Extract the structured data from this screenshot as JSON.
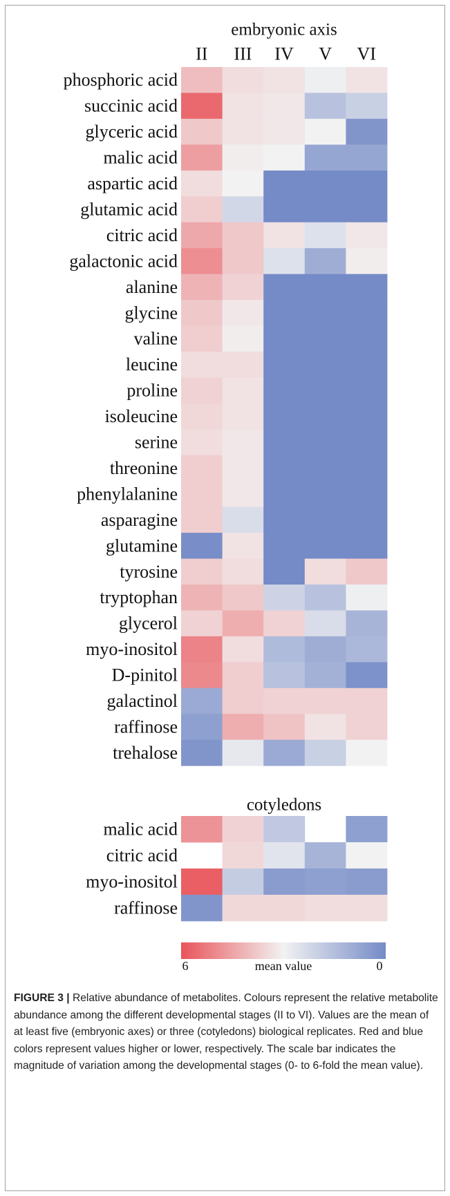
{
  "colorscale": {
    "low": "#758bc7",
    "mid": "#f2f2f2",
    "high": "#e8545a",
    "lim": [
      0,
      6
    ]
  },
  "chart_data": [
    {
      "type": "heatmap",
      "title": "embryonic axis",
      "columns": [
        "II",
        "III",
        "IV",
        "V",
        "VI"
      ],
      "rows": [
        "phosphoric acid",
        "succinic acid",
        "glyceric acid",
        "malic acid",
        "aspartic acid",
        "glutamic acid",
        "citric acid",
        "galactonic acid",
        "alanine",
        "glycine",
        "valine",
        "leucine",
        "proline",
        "isoleucine",
        "serine",
        "threonine",
        "phenylalanine",
        "asparagine",
        "glutamine",
        "tyrosine",
        "tryptophan",
        "glycerol",
        "myo-inositol",
        "D-pinitol",
        "galactinol",
        "raffinose",
        "trehalose"
      ],
      "values": [
        [
          4.0,
          3.4,
          3.3,
          2.9,
          3.3
        ],
        [
          5.6,
          3.3,
          3.2,
          1.6,
          2.0
        ],
        [
          3.8,
          3.3,
          3.2,
          3.0,
          0.3
        ],
        [
          4.6,
          3.1,
          3.0,
          0.8,
          0.8
        ],
        [
          3.4,
          3.0,
          0,
          0,
          0
        ],
        [
          3.7,
          2.2,
          0,
          0,
          0
        ],
        [
          4.4,
          3.8,
          3.3,
          2.5,
          3.2
        ],
        [
          4.9,
          3.8,
          2.5,
          1.0,
          3.1
        ],
        [
          4.2,
          3.6,
          0,
          0,
          0
        ],
        [
          3.8,
          3.2,
          0,
          0,
          0
        ],
        [
          3.7,
          3.1,
          0,
          0,
          0
        ],
        [
          3.4,
          3.4,
          0,
          0,
          0
        ],
        [
          3.6,
          3.3,
          0,
          0,
          0
        ],
        [
          3.5,
          3.3,
          0,
          0,
          0
        ],
        [
          3.4,
          3.2,
          0,
          0,
          0
        ],
        [
          3.7,
          3.2,
          0,
          0,
          0
        ],
        [
          3.7,
          3.2,
          0,
          0,
          0
        ],
        [
          3.7,
          2.4,
          0,
          0,
          0
        ],
        [
          0.1,
          3.3,
          0,
          0,
          0
        ],
        [
          3.7,
          3.4,
          0,
          3.4,
          3.8
        ],
        [
          4.2,
          3.8,
          2.1,
          1.6,
          2.9
        ],
        [
          3.6,
          4.3,
          3.6,
          2.4,
          1.2
        ],
        [
          5.1,
          3.4,
          1.4,
          1.0,
          1.3
        ],
        [
          5.0,
          3.7,
          1.6,
          1.1,
          0.2
        ],
        [
          0.9,
          3.7,
          3.6,
          3.6,
          3.6
        ],
        [
          0.6,
          4.3,
          3.9,
          3.3,
          3.6
        ],
        [
          0.3,
          2.7,
          0.9,
          2.0,
          3.0
        ]
      ]
    },
    {
      "type": "heatmap",
      "title": "cotyledons",
      "rows": [
        "malic acid",
        "citric acid",
        "myo-inositol",
        "raffinose"
      ],
      "values": [
        [
          4.8,
          3.6,
          1.8,
          null,
          0.6
        ],
        [
          null,
          3.5,
          2.6,
          1.2,
          3.0
        ],
        [
          5.8,
          1.9,
          0.5,
          0.6,
          0.5
        ],
        [
          0.3,
          3.5,
          3.5,
          3.4,
          3.4
        ]
      ]
    }
  ],
  "colorbar": {
    "label": "mean value",
    "lim": [
      6,
      0
    ],
    "ticks": [
      6,
      0
    ]
  },
  "caption": {
    "label": "FIGURE 3 |",
    "text": "Relative abundance of metabolites. Colours represent the relative metabolite abundance among the different developmental stages (II to VI). Values are the mean of at least five (embryonic axes) or three (cotyledons) biological replicates. Red and blue colors represent values higher or lower, respectively. The scale bar indicates the magnitude of variation among the developmental stages (0- to 6-fold the mean value)."
  }
}
